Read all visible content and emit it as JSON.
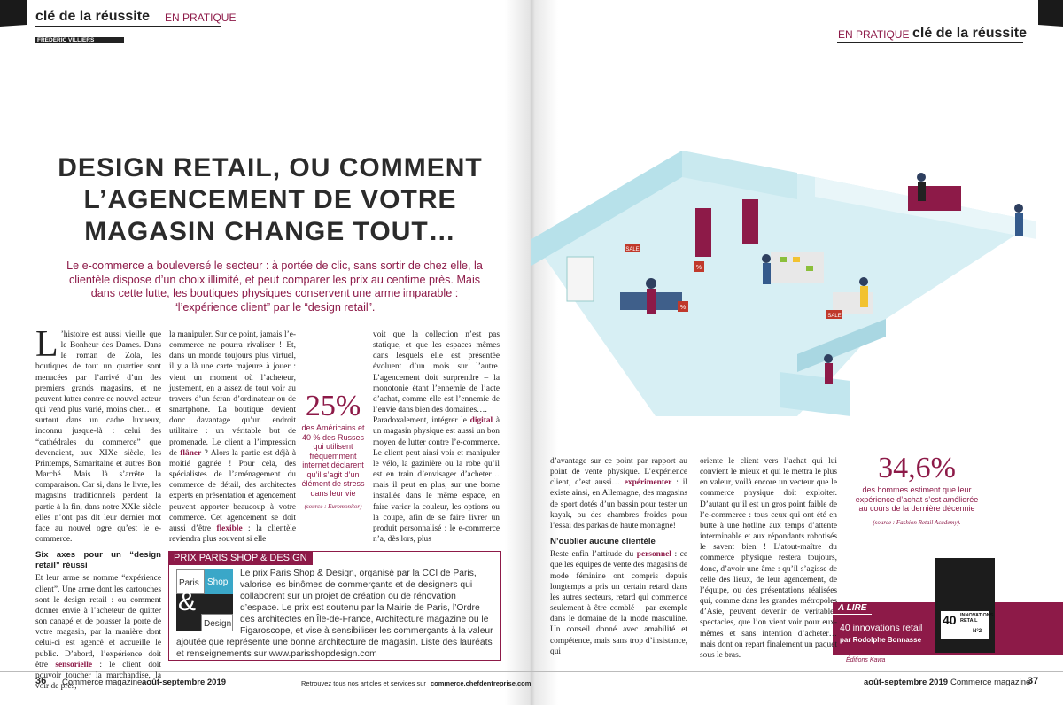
{
  "header": {
    "left_section": "clé de la réussite",
    "left_rubric": "EN PRATIQUE",
    "author": "FRÉDÉRIC VILLIERS",
    "right_rubric": "EN PRATIQUE",
    "right_section": "clé de la réussite"
  },
  "article": {
    "title_lines": [
      "DESIGN RETAIL, OU COMMENT",
      "L’AGENCEMENT DE VOTRE",
      "MAGASIN CHANGE TOUT…"
    ],
    "intro": "Le e-commerce a bouleversé le secteur : à portée de clic, sans sortir de chez elle, la clientèle dispose d’un choix illimité, et peut comparer les prix au centime près. Mais dans cette lutte, les boutiques physiques conservent une arme imparable : “l’expérience client” par le “design retail”.",
    "dropcap": "L",
    "columns": [
      [
        {
          "p": [
            "’histoire est aussi vieille que le Bonheur des Dames. Dans le roman de Zola, les boutiques de tout un quartier sont menacées par l’arrivé d’un des premiers grands magasins, et ne peuvent lutter contre ce nouvel acteur qui vend plus varié, moins cher… et surtout dans un cadre luxueux, inconnu jusque-là : celui des “cathédrales du commerce” que devenaient, aux XIXe siècle, les Printemps, Samaritaine et autres Bon Marché. Mais là s’arrête la comparaison. Car si, dans le livre, les magasins traditionnels perdent la partie à la fin, dans notre XXIe siècle elles n’ont pas dit leur dernier mot face au nouvel ogre qu’est le e-commerce."
          ]
        },
        {
          "h": "Six axes pour un “design retail” réussi"
        },
        {
          "p": [
            "Et leur arme se nomme “expérience client”. Une arme dont les cartouches sont le design retail : ou comment donner envie à l’acheteur de quitter son canapé et de pousser la porte de votre magasin, par la manière dont celui-ci est agencé et accueille le public. D’abord, l’expérience doit être ",
            "sensorielle",
            " : le client doit pouvoir toucher la marchandise, la voir de près,"
          ]
        }
      ],
      [
        {
          "p": [
            "la manipuler. Sur ce point, jamais l’e-commerce ne pourra rivaliser ! Et, dans un monde toujours plus virtuel, il y a là une carte majeure à jouer : vient un moment où l’acheteur, justement, en a assez de tout voir au travers d’un écran d’ordinateur ou de smartphone. La boutique devient donc davantage qu’un endroit utilitaire : un véritable but de promenade. Le client a l’impression de ",
            "flâner",
            " ? Alors la partie est déjà à moitié gagnée ! Pour cela, des spécialistes de l’aménagement du commerce de détail, des architectes experts en présentation et agencement peuvent apporter beaucoup à votre commerce. Cet agencement se doit aussi d’être ",
            "flexible",
            " : la clientèle reviendra plus souvent si elle"
          ]
        }
      ],
      [
        {
          "p": [
            "voit que la collection n’est pas statique, et que les espaces mêmes dans lesquels elle est présentée évoluent d’un mois sur l’autre. L’agencement doit surprendre – la monotonie étant l’ennemie de l’acte d’achat, comme elle est l’ennemie de l’envie dans bien des domaines…."
          ]
        },
        {
          "p": [
            "Paradoxalement, intégrer le ",
            "digital",
            " à un magasin physique est aussi un bon moyen de lutter contre l’e-commerce. Le client peut ainsi voir et manipuler le vélo, la gazinière ou la robe qu’il est en train d’envisager d’acheter… mais il peut en plus, sur une borne installée dans le même espace, en faire varier la couleur, les options ou la coupe, afin de se faire livrer un produit personnalisé : le e-commerce n’a, dès lors, plus"
          ]
        }
      ],
      [
        {
          "p": [
            "d’avantage sur ce point par rapport au point de vente physique. L’expérience client, c’est aussi… ",
            "expérimenter",
            " : il existe ainsi, en Allemagne, des magasins de sport dotés d’un bassin pour tester un kayak, ou des chambres froides pour l’essai des parkas de haute montagne!"
          ]
        },
        {
          "h": "N’oublier aucune clientèle"
        },
        {
          "p": [
            "Reste enfin l’attitude du ",
            "personnel",
            " : ce que les équipes de vente des magasins de mode féminine ont compris depuis longtemps a pris un certain retard dans les autres secteurs, retard qui commence seulement à être comblé – par exemple dans le domaine de la mode masculine. Un conseil donné avec amabilité et compétence, mais sans trop d’insistance, qui"
          ]
        }
      ],
      [
        {
          "p": [
            "oriente le client vers l’achat qui lui convient le mieux et qui le mettra le plus en valeur, voilà encore un vecteur que le commerce physique doit exploiter. D’autant qu’il est un gros point faible de l’e-commerce : tous ceux qui ont été en butte à une hotline aux temps d’attente interminable et aux répondants robotisés le savent bien ! L’atout-maître du commerce physique restera toujours, donc, d’avoir une âme : qu’il s’agisse de celle des lieux, de leur agencement, de l’équipe, ou des présentations réalisées qui, comme dans les grandes métropoles d’Asie, peuvent devenir de véritables spectacles, que l’on vient voir pour eux-mêmes et sans intention d’acheter… mais dont on repart finalement un paquet sous le bras."
          ]
        }
      ]
    ]
  },
  "stat1": {
    "value": "25%",
    "text": "des Américains et 40 % des Russes qui utilisent fréquemment internet déclarent qu’il s’agit d’un élément de stress dans leur vie",
    "source": "(source : Euromonitor)"
  },
  "stat2": {
    "value": "34,6%",
    "text": "des hommes estiment que leur expérience d’achat s’est améliorée au cours de la dernière décennie",
    "source": "(source : Fashion Retail Academy)."
  },
  "box": {
    "title": "PRIX PARIS SHOP & DESIGN",
    "logo": [
      "Paris",
      "Shop",
      "&",
      "Design"
    ],
    "text": "Le prix Paris Shop & Design, organisé par la CCI de Paris, valorise les binômes de commerçants et de designers qui collaborent sur un projet de création ou de rénovation d’espace. Le prix est soutenu par la Mairie de Paris, l’Ordre des architectes en Île-de-France, Architecture magazine ou le Figaroscope, et vise à sensibiliser les commerçants à la valeur ajoutée que représente une bonne architecture de magasin. Liste des lauréats et renseignements sur www.parisshopdesign.com"
  },
  "illustration": {
    "signs": [
      "SALE",
      "%",
      "SALE",
      "%"
    ]
  },
  "reading": {
    "label": "A LIRE",
    "title": "40 innovations retail",
    "author": "par Rodolphe Bonnasse",
    "publisher": "Éditions Kawa",
    "cover_number": "40",
    "cover_title": "INNOVATIONS RETAIL",
    "cover_issue": "N°2"
  },
  "footer": {
    "left_page": "36",
    "left_mag": "Commerce magazine",
    "left_date": "août-septembre 2019",
    "center_text": "Retrouvez tous nos articles et services sur",
    "center_url": "commerce.chefdentreprise.com",
    "right_date": "août-septembre 2019",
    "right_mag": "Commerce magazine",
    "right_page": "37"
  }
}
